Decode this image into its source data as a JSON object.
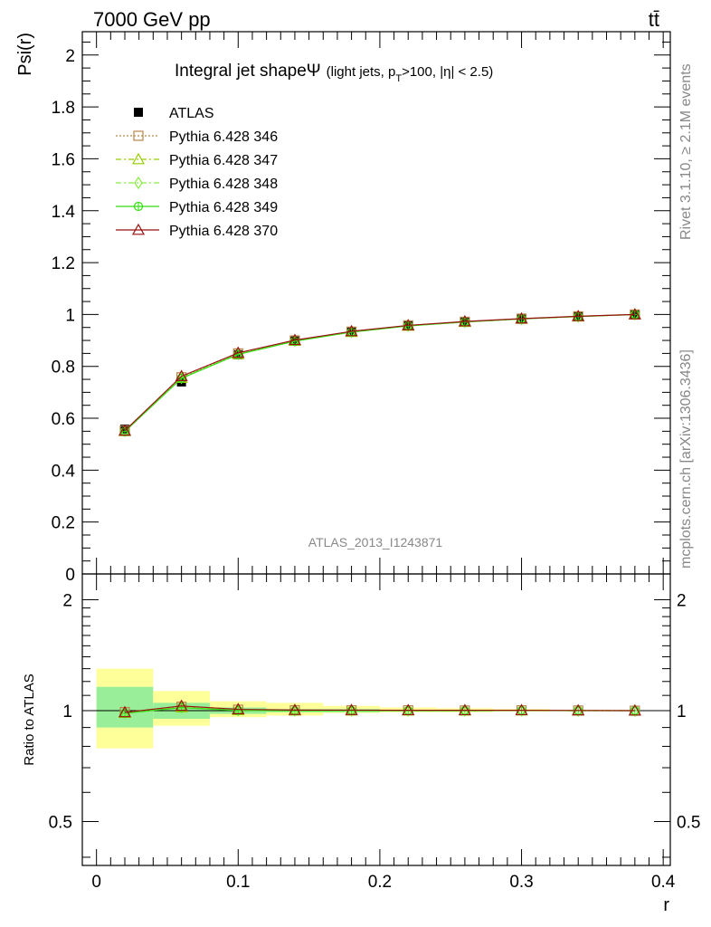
{
  "header": {
    "energy_label": "7000 GeV pp",
    "process_label": "tt̄"
  },
  "side_labels": {
    "rivet": "Rivet 3.1.10, ≥ 2.1M events",
    "mcplots": "mcplots.cern.ch [arXiv:1306.3436]"
  },
  "main_plot": {
    "title_main": "Integral jet shape",
    "title_psi": "Ψ",
    "title_sub": "(light jets, p",
    "title_sub_T": "T",
    "title_sub_rest": ">100, |η| < 2.5)",
    "ylabel": "Psi(r)",
    "analysis_tag": "ATLAS_2013_I1243871",
    "ytick_labels": [
      "0",
      "0.2",
      "0.4",
      "0.6",
      "0.8",
      "1",
      "1.2",
      "1.4",
      "1.6",
      "1.8",
      "2"
    ]
  },
  "ratio_plot": {
    "ylabel": "Ratio to ATLAS",
    "ytick_labels": [
      "0.5",
      "1",
      "2"
    ]
  },
  "x_axis": {
    "label": "r",
    "tick_labels": [
      "0",
      "0.1",
      "0.2",
      "0.3",
      "0.4"
    ]
  },
  "legend": [
    {
      "name": "ATLAS",
      "color": "#000000",
      "marker": "square-filled"
    },
    {
      "name": "Pythia 6.428 346",
      "color": "#b8864b",
      "marker": "square-open"
    },
    {
      "name": "Pythia 6.428 347",
      "color": "#99cc00",
      "marker": "triangle-open"
    },
    {
      "name": "Pythia 6.428 348",
      "color": "#88ee44",
      "marker": "diamond-open"
    },
    {
      "name": "Pythia 6.428 349",
      "color": "#33dd11",
      "marker": "circle-cross"
    },
    {
      "name": "Pythia 6.428 370",
      "color": "#991111",
      "marker": "triangle-open"
    }
  ],
  "chart_data": {
    "type": "line",
    "x": [
      0.02,
      0.06,
      0.1,
      0.14,
      0.18,
      0.22,
      0.26,
      0.3,
      0.34,
      0.38
    ],
    "xlim": [
      -0.01,
      0.405
    ],
    "ylim": [
      0,
      2.09
    ],
    "ratio_ylim": [
      0.38,
      2.35
    ],
    "ratio_scale": "log",
    "series": [
      {
        "name": "ATLAS",
        "values": [
          0.558,
          0.74,
          0.845,
          0.898,
          0.932,
          0.956,
          0.971,
          0.982,
          0.992,
          1.0
        ]
      },
      {
        "name": "Pythia 6.428 346",
        "values": [
          0.553,
          0.758,
          0.85,
          0.9,
          0.934,
          0.958,
          0.972,
          0.984,
          0.993,
          1.0
        ]
      },
      {
        "name": "Pythia 6.428 347",
        "values": [
          0.55,
          0.755,
          0.847,
          0.898,
          0.932,
          0.956,
          0.971,
          0.983,
          0.992,
          1.0
        ]
      },
      {
        "name": "Pythia 6.428 348",
        "values": [
          0.551,
          0.756,
          0.848,
          0.899,
          0.933,
          0.957,
          0.971,
          0.983,
          0.992,
          1.0
        ]
      },
      {
        "name": "Pythia 6.428 349",
        "values": [
          0.549,
          0.754,
          0.846,
          0.897,
          0.932,
          0.956,
          0.971,
          0.983,
          0.992,
          1.0
        ]
      },
      {
        "name": "Pythia 6.428 370",
        "values": [
          0.552,
          0.762,
          0.852,
          0.901,
          0.935,
          0.958,
          0.973,
          0.984,
          0.993,
          1.0
        ]
      }
    ],
    "ratio_bands": {
      "x_edges": [
        0.0,
        0.04,
        0.08,
        0.12,
        0.16,
        0.2,
        0.24,
        0.28,
        0.32,
        0.36,
        0.4
      ],
      "stat_low": [
        0.9,
        0.95,
        0.98,
        0.99,
        0.99,
        0.995,
        0.995,
        0.998,
        0.999,
        1.0
      ],
      "stat_high": [
        1.16,
        1.05,
        1.02,
        1.01,
        1.01,
        1.005,
        1.005,
        1.002,
        1.001,
        1.0
      ],
      "syst_low": [
        0.79,
        0.91,
        0.96,
        0.97,
        0.985,
        0.99,
        0.99,
        0.995,
        0.998,
        1.0
      ],
      "syst_high": [
        1.3,
        1.13,
        1.06,
        1.05,
        1.03,
        1.02,
        1.015,
        1.01,
        1.005,
        1.0
      ],
      "stat_color": "#99ee99",
      "syst_color": "#ffff99"
    }
  }
}
